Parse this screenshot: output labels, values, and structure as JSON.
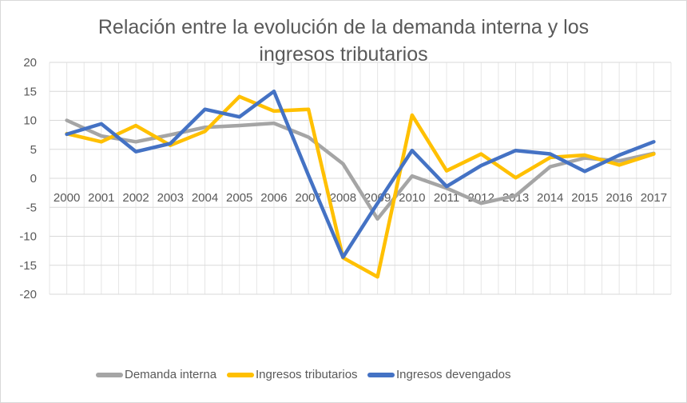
{
  "chart_data": {
    "type": "line",
    "title_lines": [
      "Relación entre la evolución de la demanda interna y los",
      "ingresos tributarios"
    ],
    "categories": [
      "2000",
      "2001",
      "2002",
      "2003",
      "2004",
      "2005",
      "2006",
      "2007",
      "2008",
      "2009",
      "2010",
      "2011",
      "2012",
      "2013",
      "2014",
      "2015",
      "2016",
      "2017"
    ],
    "ylim": [
      -20,
      20
    ],
    "yticks": [
      "20",
      "15",
      "10",
      "5",
      "0",
      "-5",
      "-10",
      "-15",
      "-20"
    ],
    "grid": true,
    "legend_position": "bottom",
    "series": [
      {
        "name": "Demanda interna",
        "color": "#A5A5A5",
        "values": [
          10.0,
          7.3,
          6.3,
          7.5,
          8.8,
          9.1,
          9.5,
          7.1,
          2.5,
          -7.0,
          0.4,
          -1.7,
          -4.3,
          -3.0,
          2.0,
          3.5,
          3.0,
          4.3
        ]
      },
      {
        "name": "Ingresos tributarios",
        "color": "#FFC000",
        "values": [
          7.7,
          6.3,
          9.1,
          5.7,
          8.1,
          14.1,
          11.6,
          11.9,
          -13.7,
          -17.0,
          10.9,
          1.3,
          4.2,
          0.1,
          3.6,
          4.0,
          2.3,
          4.2
        ]
      },
      {
        "name": "Ingresos devengados",
        "color": "#4472C4",
        "values": [
          7.6,
          9.4,
          4.6,
          6.0,
          11.9,
          10.6,
          15.0,
          0.5,
          -13.6,
          -4.3,
          4.8,
          -1.4,
          2.2,
          4.8,
          4.2,
          1.2,
          4.0,
          6.3
        ]
      }
    ]
  }
}
